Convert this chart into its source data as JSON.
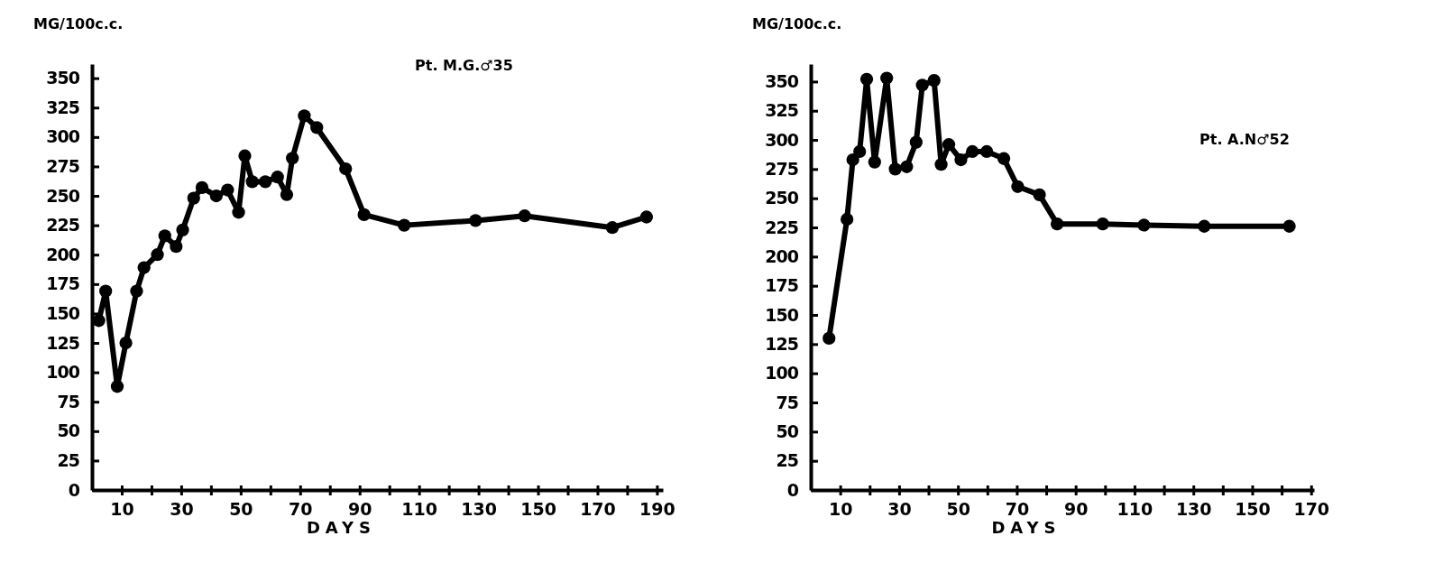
{
  "chart_data": [
    {
      "type": "line",
      "title": "Pt. M.G.♂35",
      "xlabel": "DAYS",
      "ylabel": "MG/100c.c.",
      "marker": "circle",
      "line_style": "solid",
      "grid": false,
      "xlim": [
        0,
        192
      ],
      "ylim": [
        0,
        362
      ],
      "xticks": [
        10,
        {
          "value": 20,
          "label": null
        },
        30,
        {
          "value": 40,
          "label": null
        },
        50,
        {
          "value": 60,
          "label": null
        },
        70,
        {
          "value": 80,
          "label": null
        },
        90,
        {
          "value": 100,
          "label": null
        },
        110,
        {
          "value": 120,
          "label": null
        },
        130,
        {
          "value": 140,
          "label": null
        },
        150,
        {
          "value": 160,
          "label": null
        },
        170,
        {
          "value": 180,
          "label": null
        },
        190
      ],
      "yticks": [
        0,
        25,
        50,
        75,
        100,
        125,
        150,
        175,
        200,
        225,
        250,
        275,
        300,
        325,
        350
      ],
      "series": [
        {
          "color": "#000000",
          "x": [
            2.3,
            4.6,
            8.5,
            11.4,
            15,
            17.5,
            22,
            24.5,
            28.3,
            30.5,
            34.2,
            37,
            41.8,
            45.6,
            49.3,
            51.4,
            53.9,
            58.3,
            62.4,
            65.5,
            67.4,
            71.4,
            75.6,
            85.3,
            91.5,
            105,
            129,
            145.5,
            175,
            186.5
          ],
          "values": [
            144,
            169,
            88,
            125,
            169,
            189,
            200,
            216,
            207,
            221,
            248,
            257,
            250,
            255,
            236,
            284,
            262,
            262,
            266,
            251,
            282,
            318,
            308,
            273,
            234,
            225,
            229,
            233,
            223,
            232
          ]
        }
      ]
    },
    {
      "type": "line",
      "title": "Pt. A.N♂52",
      "xlabel": "DAYS",
      "ylabel": "MG/100c.c.",
      "marker": "circle",
      "line_style": "solid",
      "grid": false,
      "xlim": [
        0,
        171
      ],
      "ylim": [
        0,
        365
      ],
      "xticks": [
        10,
        {
          "value": 20,
          "label": null
        },
        30,
        {
          "value": 40,
          "label": null
        },
        50,
        {
          "value": 60,
          "label": null
        },
        70,
        {
          "value": 80,
          "label": null
        },
        90,
        {
          "value": 100,
          "label": null
        },
        110,
        {
          "value": 120,
          "label": null
        },
        130,
        {
          "value": 140,
          "label": null
        },
        150,
        {
          "value": 160,
          "label": null
        },
        170
      ],
      "yticks": [
        0,
        25,
        50,
        75,
        100,
        125,
        150,
        175,
        200,
        225,
        250,
        275,
        300,
        325,
        350
      ],
      "series": [
        {
          "color": "#000000",
          "x": [
            6.2,
            12.3,
            14.3,
            16.6,
            19,
            21.7,
            25.8,
            28.7,
            32.6,
            35.8,
            37.9,
            41.9,
            44.3,
            46.9,
            51,
            54.9,
            59.8,
            65.6,
            70.3,
            77.7,
            83.7,
            99.2,
            113.2,
            133.7,
            162.6
          ],
          "values": [
            130,
            232,
            283,
            290,
            352,
            281,
            353,
            275,
            277,
            298,
            347,
            351,
            279,
            296,
            283,
            290,
            290,
            284,
            260,
            253,
            228,
            228,
            227,
            226,
            226
          ]
        }
      ]
    }
  ]
}
